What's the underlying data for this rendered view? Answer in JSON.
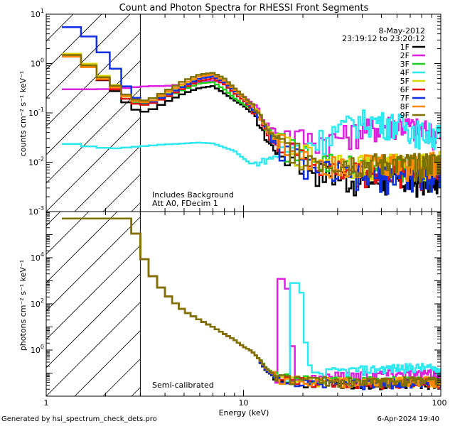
{
  "page": {
    "title": "Count and Photon Spectra for RHESSI Front Segments",
    "footer_left": "Generated by hsi_spectrum_check_dets.pro",
    "footer_right": "6-Apr-2024 19:40"
  },
  "chart_data": {
    "type": "line",
    "x_label": "Energy (keV)",
    "x_scale": "log",
    "xlim": [
      1,
      100
    ],
    "x_ticks": [
      {
        "value": 1,
        "label": "1"
      },
      {
        "value": 10,
        "label": "10"
      },
      {
        "value": 100,
        "label": "100"
      }
    ],
    "date": "8-May-2012",
    "time_range": "23:19:12 to 23:20:12",
    "attenuator_threshold_keV": 3,
    "colors": {
      "1F": "#000000",
      "2F": "#e020e0",
      "3F": "#20d020",
      "4F": "#30e8f0",
      "5F": "#d8d800",
      "6F": "#e01010",
      "7F": "#1030e0",
      "8F": "#ff8800",
      "9F": "#807000"
    },
    "legend": [
      "1F",
      "2F",
      "3F",
      "4F",
      "5F",
      "6F",
      "7F",
      "8F",
      "9F"
    ],
    "panels": [
      {
        "id": "counts",
        "ylabel": "counts cm⁻² s⁻¹ keV⁻¹",
        "y_scale": "log",
        "ylim": [
          0.001,
          10
        ],
        "y_ticks": [
          {
            "value": 0.001,
            "base": "10",
            "exp": "-3"
          },
          {
            "value": 0.01,
            "base": "10",
            "exp": "-2"
          },
          {
            "value": 0.1,
            "base": "10",
            "exp": "-1"
          },
          {
            "value": 1,
            "base": "10",
            "exp": "0"
          },
          {
            "value": 10,
            "base": "10",
            "exp": "1"
          }
        ],
        "annotations": [
          "Includes Background",
          "Att A0, FDecim 1"
        ]
      },
      {
        "id": "photons",
        "ylabel": "photons cm⁻² s⁻¹ keV⁻¹",
        "y_scale": "log",
        "ylim": [
          0.01,
          1000000
        ],
        "y_ticks": [
          {
            "value": 1,
            "base": "10",
            "exp": "0"
          },
          {
            "value": 100,
            "base": "10",
            "exp": "2"
          },
          {
            "value": 10000,
            "base": "10",
            "exp": "4"
          }
        ],
        "annotations": [
          "Semi-calibrated"
        ]
      }
    ],
    "count_series_anchors": {
      "energy": [
        1.2,
        1.5,
        1.8,
        2.2,
        2.6,
        3.0,
        3.5,
        4.0,
        5.0,
        6.0,
        7.0,
        8.0,
        9.0,
        10.0,
        11.0,
        12.0,
        13.0,
        15.0,
        20.0,
        25.0,
        30.0,
        40.0,
        60.0,
        80.0,
        100.0
      ],
      "1F": [
        1.7,
        1.3,
        0.6,
        0.3,
        0.15,
        0.1,
        0.12,
        0.16,
        0.25,
        0.32,
        0.35,
        0.25,
        0.18,
        0.14,
        0.1,
        0.06,
        0.03,
        0.015,
        0.01,
        0.006,
        0.005,
        0.004,
        0.004,
        0.004,
        0.005
      ],
      "2F": [
        0.3,
        0.3,
        0.3,
        0.31,
        0.32,
        0.34,
        0.35,
        0.35,
        0.38,
        0.42,
        0.45,
        0.4,
        0.3,
        0.22,
        0.16,
        0.11,
        0.06,
        0.04,
        0.03,
        0.028,
        0.03,
        0.045,
        0.06,
        0.045,
        0.035
      ],
      "3F": [
        1.7,
        1.3,
        0.6,
        0.35,
        0.2,
        0.15,
        0.16,
        0.2,
        0.3,
        0.4,
        0.42,
        0.3,
        0.2,
        0.15,
        0.12,
        0.1,
        0.05,
        0.025,
        0.015,
        0.01,
        0.009,
        0.008,
        0.008,
        0.008,
        0.009
      ],
      "4F": [
        0.025,
        0.022,
        0.02,
        0.019,
        0.02,
        0.021,
        0.022,
        0.023,
        0.024,
        0.025,
        0.024,
        0.02,
        0.017,
        0.012,
        0.009,
        0.01,
        0.011,
        0.014,
        0.02,
        0.03,
        0.045,
        0.07,
        0.06,
        0.04,
        0.035
      ],
      "5F": [
        1.8,
        1.4,
        0.7,
        0.4,
        0.2,
        0.16,
        0.18,
        0.24,
        0.38,
        0.55,
        0.6,
        0.45,
        0.3,
        0.2,
        0.14,
        0.1,
        0.05,
        0.025,
        0.015,
        0.01,
        0.01,
        0.009,
        0.009,
        0.009,
        0.01
      ],
      "6F": [
        1.6,
        1.2,
        0.6,
        0.32,
        0.18,
        0.14,
        0.16,
        0.2,
        0.32,
        0.45,
        0.5,
        0.38,
        0.25,
        0.18,
        0.12,
        0.08,
        0.04,
        0.02,
        0.012,
        0.008,
        0.007,
        0.006,
        0.006,
        0.006,
        0.007
      ],
      "7F": [
        6.0,
        5.0,
        2.5,
        0.9,
        0.3,
        0.16,
        0.17,
        0.22,
        0.35,
        0.5,
        0.55,
        0.42,
        0.28,
        0.2,
        0.13,
        0.09,
        0.045,
        0.02,
        0.01,
        0.007,
        0.006,
        0.005,
        0.005,
        0.005,
        0.006
      ],
      "8F": [
        1.6,
        1.2,
        0.6,
        0.35,
        0.2,
        0.16,
        0.18,
        0.25,
        0.4,
        0.55,
        0.6,
        0.45,
        0.3,
        0.2,
        0.14,
        0.1,
        0.05,
        0.025,
        0.015,
        0.01,
        0.01,
        0.009,
        0.009,
        0.009,
        0.01
      ],
      "9F": [
        1.7,
        1.3,
        0.65,
        0.38,
        0.22,
        0.17,
        0.2,
        0.27,
        0.45,
        0.6,
        0.65,
        0.5,
        0.32,
        0.22,
        0.15,
        0.1,
        0.05,
        0.025,
        0.015,
        0.01,
        0.01,
        0.009,
        0.009,
        0.009,
        0.01
      ]
    },
    "photon_series_anchors": {
      "energy": [
        2.6,
        2.75,
        2.95,
        3.1,
        3.3,
        3.6,
        4.0,
        4.5,
        5.0,
        6.0,
        7.0,
        8.0,
        9.0,
        10.0,
        11.0,
        12.0,
        13.0,
        15.0,
        20.0,
        30.0,
        50.0,
        80.0,
        100.0
      ],
      "base": [
        500000,
        200000,
        60000,
        12000,
        3000,
        1000,
        300,
        110,
        50,
        20,
        10,
        5,
        2.8,
        1.4,
        0.9,
        0.4,
        0.15,
        0.06,
        0.045,
        0.04,
        0.04,
        0.045,
        0.04
      ],
      "2F_spike": {
        "energy": [
          15.0,
          16.0,
          17.0,
          18.0,
          19.0,
          20.0,
          25.0,
          40.0,
          60.0,
          100.0
        ],
        "values": [
          1200,
          1200,
          300,
          0.15,
          0.05,
          0.06,
          0.07,
          0.09,
          0.1,
          0.09
        ]
      },
      "4F_spike": {
        "energy": [
          17.0,
          19.0,
          20.0,
          21.0,
          22.0,
          24.0,
          30.0,
          50.0,
          80.0,
          100.0
        ],
        "values": [
          800,
          800,
          200,
          0.3,
          0.12,
          0.1,
          0.12,
          0.16,
          0.18,
          0.15
        ]
      }
    }
  }
}
